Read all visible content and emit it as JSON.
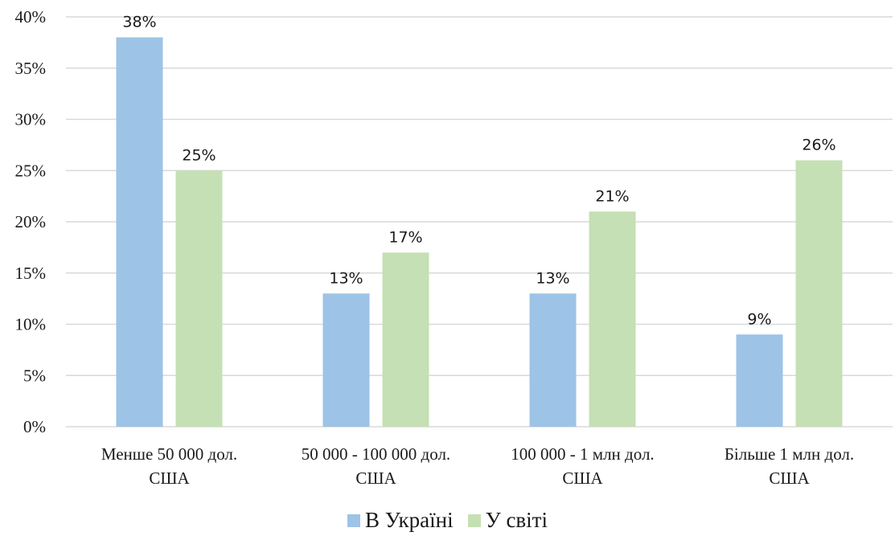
{
  "chart_data": {
    "type": "bar",
    "categories": [
      [
        "Менше 50 000 дол.",
        "США"
      ],
      [
        "50 000 - 100 000 дол.",
        "США"
      ],
      [
        "100 000 - 1 млн дол.",
        "США"
      ],
      [
        "Більше 1 млн дол.",
        "США"
      ]
    ],
    "series": [
      {
        "name": "В Україні",
        "values": [
          38,
          13,
          13,
          9
        ],
        "labels": [
          "38%",
          "13%",
          "13%",
          "9%"
        ],
        "color": "#9dc3e6"
      },
      {
        "name": "У світі",
        "values": [
          25,
          17,
          21,
          26
        ],
        "labels": [
          "25%",
          "17%",
          "21%",
          "26%"
        ],
        "color": "#c5e0b4"
      }
    ],
    "y_ticks": [
      "0%",
      "5%",
      "10%",
      "15%",
      "20%",
      "25%",
      "30%",
      "35%",
      "40%"
    ],
    "ylim": [
      0,
      40
    ],
    "grid": true,
    "legend_position": "bottom"
  }
}
